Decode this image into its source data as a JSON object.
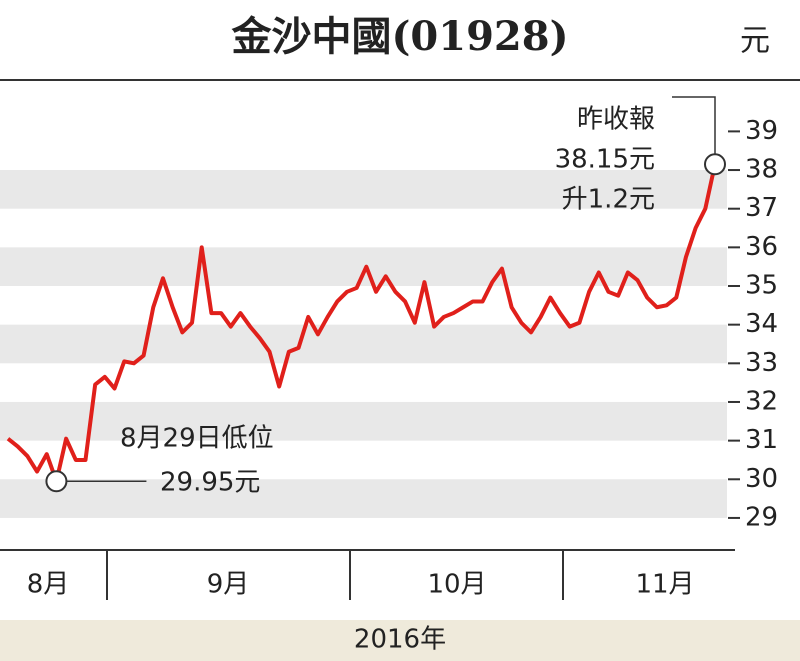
{
  "chart_data": {
    "type": "line",
    "title": "金沙中國(01928)",
    "unit": "元",
    "x_labels": [
      "8月",
      "9月",
      "10月",
      "11月"
    ],
    "x_label": "2016年",
    "series": [
      {
        "name": "金沙中國",
        "color": "#e0201b",
        "values": [
          31.05,
          30.85,
          30.6,
          30.2,
          30.65,
          29.95,
          31.05,
          30.5,
          30.5,
          32.45,
          32.65,
          32.35,
          33.05,
          33,
          33.2,
          34.45,
          35.2,
          34.45,
          33.8,
          34.05,
          36,
          34.3,
          34.3,
          33.95,
          34.3,
          33.95,
          33.65,
          33.3,
          32.4,
          33.3,
          33.4,
          34.2,
          33.75,
          34.2,
          34.6,
          34.85,
          34.95,
          35.5,
          34.85,
          35.25,
          34.85,
          34.6,
          34.05,
          35.1,
          33.95,
          34.2,
          34.3,
          34.45,
          34.6,
          34.6,
          35.1,
          35.45,
          34.45,
          34.05,
          33.8,
          34.2,
          34.7,
          34.3,
          33.95,
          34.05,
          34.85,
          35.35,
          34.85,
          34.75,
          35.35,
          35.15,
          34.7,
          34.45,
          34.5,
          34.7,
          35.75,
          36.5,
          37,
          38.15
        ]
      }
    ],
    "ylim": [
      28.3,
      40.2
    ],
    "yticks": [
      29,
      30,
      31,
      32,
      33,
      34,
      35,
      36,
      37,
      38,
      39
    ],
    "grid": "bands",
    "annotations": {
      "low": [
        "8月29日低位",
        "29.95元"
      ],
      "last": [
        "昨收報",
        "38.15元",
        "升1.2元"
      ]
    }
  }
}
